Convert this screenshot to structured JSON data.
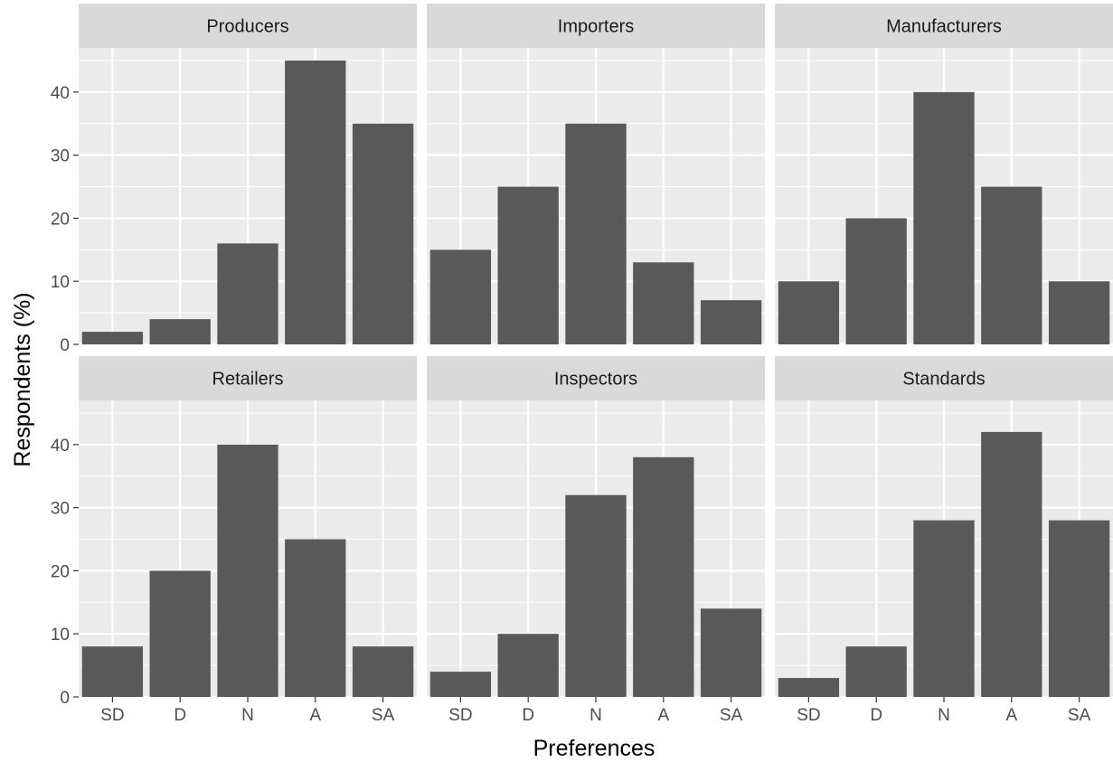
{
  "chart_data": {
    "type": "bar",
    "layout": "facet grid, 2 rows x 3 columns",
    "xlabel": "Preferences",
    "ylabel": "Respondents (%)",
    "categories": [
      "SD",
      "D",
      "N",
      "A",
      "SA"
    ],
    "ylim": [
      0,
      47
    ],
    "yticks": [
      0,
      10,
      20,
      30,
      40
    ],
    "grid": true,
    "bar_color": "#595959",
    "panel_background": "#ebebeb",
    "strip_background": "#d9d9d9",
    "panels": [
      {
        "title": "Producers",
        "values": [
          2,
          4,
          16,
          45,
          35
        ]
      },
      {
        "title": "Importers",
        "values": [
          15,
          25,
          35,
          13,
          7
        ]
      },
      {
        "title": "Manufacturers",
        "values": [
          10,
          20,
          40,
          25,
          10
        ]
      },
      {
        "title": "Retailers",
        "values": [
          8,
          20,
          40,
          25,
          8
        ]
      },
      {
        "title": "Inspectors",
        "values": [
          4,
          10,
          32,
          38,
          14
        ]
      },
      {
        "title": "Standards",
        "values": [
          3,
          8,
          28,
          42,
          28
        ]
      }
    ]
  }
}
